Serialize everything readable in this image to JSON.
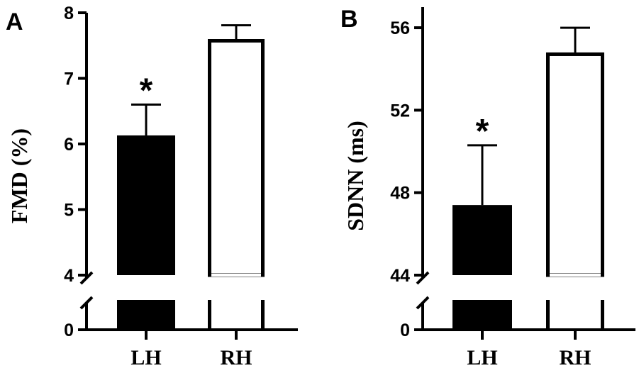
{
  "chart_data": [
    {
      "type": "bar",
      "panel": "A",
      "ylabel": "FMD (%)",
      "categories": [
        "LH",
        "RH"
      ],
      "values": [
        6.13,
        7.6
      ],
      "errors": [
        0.47,
        0.21
      ],
      "fills": [
        "#000000",
        "#ffffff"
      ],
      "significance": [
        "*",
        ""
      ],
      "ylim": [
        4,
        8
      ],
      "yticks": [
        4,
        5,
        6,
        7,
        8
      ],
      "axis_break": true,
      "break_floor": 0
    },
    {
      "type": "bar",
      "panel": "B",
      "ylabel": "SDNN (ms)",
      "categories": [
        "LH",
        "RH"
      ],
      "values": [
        47.4,
        54.8
      ],
      "errors": [
        2.9,
        1.2
      ],
      "fills": [
        "#000000",
        "#ffffff"
      ],
      "significance": [
        "*",
        ""
      ],
      "ylim": [
        44,
        57
      ],
      "yticks": [
        44,
        48,
        52,
        56
      ],
      "axis_break": true,
      "break_floor": 0
    }
  ]
}
